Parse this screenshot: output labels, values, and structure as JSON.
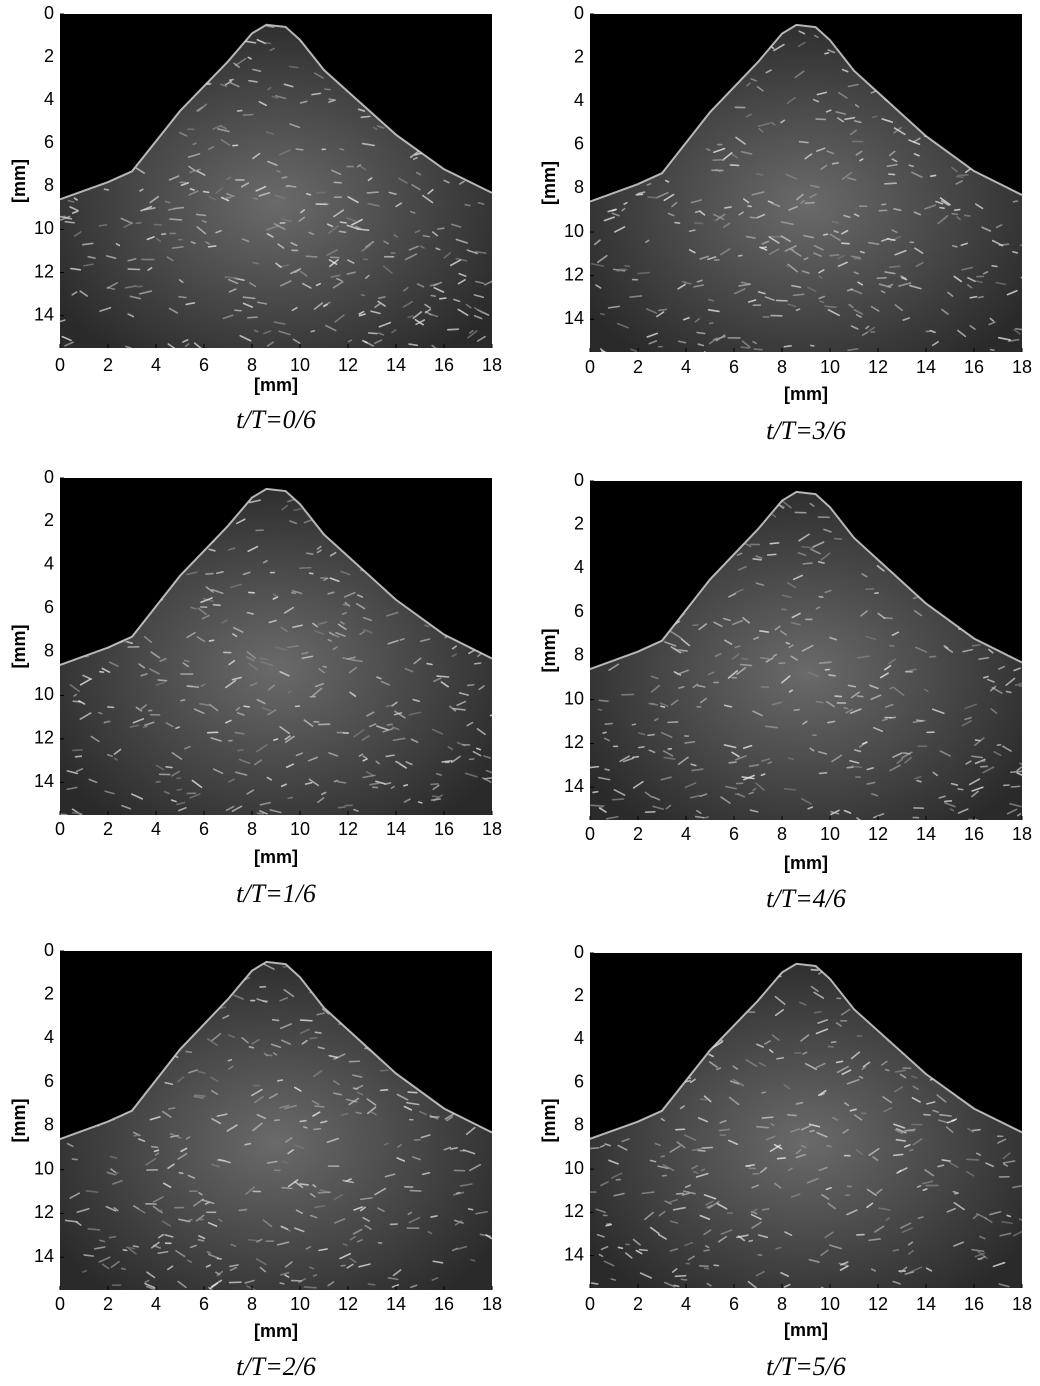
{
  "panels": [
    {
      "caption": "t/T=0/6",
      "xlabel": "[mm]",
      "ylabel": "[mm]",
      "xlim": [
        0,
        18
      ],
      "ylim": [
        0,
        15.5
      ],
      "xticks": [
        0,
        2,
        4,
        6,
        8,
        10,
        12,
        14,
        16,
        18
      ],
      "yticks": [
        0,
        2,
        4,
        6,
        8,
        10,
        12,
        14
      ]
    },
    {
      "caption": "t/T=3/6",
      "xlabel": "[mm]",
      "ylabel": "[mm]",
      "xlim": [
        0,
        18
      ],
      "ylim": [
        0,
        15.5
      ],
      "xticks": [
        0,
        2,
        4,
        6,
        8,
        10,
        12,
        14,
        16,
        18
      ],
      "yticks": [
        0,
        2,
        4,
        6,
        8,
        10,
        12,
        14
      ]
    },
    {
      "caption": "t/T=1/6",
      "xlabel": "[mm]",
      "ylabel": "[mm]",
      "xlim": [
        0,
        18
      ],
      "ylim": [
        0,
        15.5
      ],
      "xticks": [
        0,
        2,
        4,
        6,
        8,
        10,
        12,
        14,
        16,
        18
      ],
      "yticks": [
        0,
        2,
        4,
        6,
        8,
        10,
        12,
        14
      ]
    },
    {
      "caption": "t/T=4/6",
      "xlabel": "[mm]",
      "ylabel": "[mm]",
      "xlim": [
        0,
        18
      ],
      "ylim": [
        0,
        15.5
      ],
      "xticks": [
        0,
        2,
        4,
        6,
        8,
        10,
        12,
        14,
        16,
        18
      ],
      "yticks": [
        0,
        2,
        4,
        6,
        8,
        10,
        12,
        14
      ]
    },
    {
      "caption": "t/T=2/6",
      "xlabel": "[mm]",
      "ylabel": "[mm]",
      "xlim": [
        0,
        18
      ],
      "ylim": [
        0,
        15.5
      ],
      "xticks": [
        0,
        2,
        4,
        6,
        8,
        10,
        12,
        14,
        16,
        18
      ],
      "yticks": [
        0,
        2,
        4,
        6,
        8,
        10,
        12,
        14
      ]
    },
    {
      "caption": "t/T=5/6",
      "xlabel": "[mm]",
      "ylabel": "[mm]",
      "xlim": [
        0,
        18
      ],
      "ylim": [
        0,
        15.5
      ],
      "xticks": [
        0,
        2,
        4,
        6,
        8,
        10,
        12,
        14,
        16,
        18
      ],
      "yticks": [
        0,
        2,
        4,
        6,
        8,
        10,
        12,
        14
      ]
    }
  ]
}
